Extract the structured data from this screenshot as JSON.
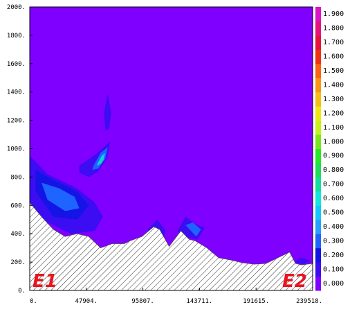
{
  "chart_data": {
    "type": "heatmap",
    "title": "",
    "xlabel": "",
    "ylabel": "",
    "xlim": [
      0,
      239518
    ],
    "ylim": [
      0,
      2000
    ],
    "x_ticks": [
      "0.",
      "47904.",
      "95807.",
      "143711.",
      "191615.",
      "239518."
    ],
    "y_ticks": [
      "0.",
      "200.",
      "400.",
      "600.",
      "800.",
      "1000.",
      "1200.",
      "1400.",
      "1600.",
      "1800.",
      "2000."
    ],
    "background_level": "0.000",
    "colorbar": {
      "levels": [
        "0.000",
        "0.100",
        "0.200",
        "0.300",
        "0.400",
        "0.500",
        "0.600",
        "0.700",
        "0.800",
        "0.900",
        "1.000",
        "1.100",
        "1.200",
        "1.300",
        "1.400",
        "1.500",
        "1.600",
        "1.700",
        "1.800",
        "1.900"
      ],
      "colors": [
        "#7f00ff",
        "#3c0cf2",
        "#1414e6",
        "#1e64ff",
        "#28a0ff",
        "#14c8ff",
        "#14e6dc",
        "#14dca0",
        "#1edc5a",
        "#28e628",
        "#7ae61e",
        "#c8f01e",
        "#f0e614",
        "#f5be14",
        "#fa9614",
        "#fa6414",
        "#f03214",
        "#e6143c",
        "#e6147a",
        "#dc14c8"
      ]
    },
    "terrain": {
      "x": [
        0,
        10000,
        20000,
        30000,
        40000,
        50000,
        60000,
        70000,
        80000,
        85000,
        95000,
        105000,
        110000,
        118000,
        128000,
        135000,
        140000,
        150000,
        160000,
        170000,
        180000,
        190000,
        200000,
        210000,
        220000,
        225000,
        230000,
        239518
      ],
      "y": [
        620,
        520,
        430,
        380,
        400,
        380,
        300,
        330,
        330,
        350,
        380,
        450,
        430,
        310,
        420,
        360,
        350,
        300,
        230,
        215,
        195,
        185,
        190,
        230,
        270,
        190,
        180,
        190
      ]
    },
    "contour_regions": [
      {
        "level": "0.100",
        "x": [
          0,
          15000,
          40000,
          55000,
          62000,
          55000,
          35000,
          15000,
          0
        ],
        "y": [
          950,
          820,
          720,
          620,
          520,
          420,
          400,
          480,
          560
        ]
      },
      {
        "level": "0.200",
        "x": [
          5000,
          20000,
          40000,
          50000,
          40000,
          20000,
          5000
        ],
        "y": [
          850,
          780,
          700,
          600,
          500,
          520,
          700
        ]
      },
      {
        "level": "0.300",
        "x": [
          10000,
          25000,
          38000,
          42000,
          30000,
          15000
        ],
        "y": [
          760,
          720,
          660,
          580,
          560,
          640
        ]
      },
      {
        "level": "0.100",
        "x": [
          42000,
          56000,
          68000,
          66000,
          58000,
          50000,
          42000
        ],
        "y": [
          880,
          960,
          1050,
          940,
          840,
          800,
          830
        ]
      },
      {
        "level": "0.300",
        "x": [
          54000,
          60000,
          66000,
          64000,
          58000,
          53000
        ],
        "y": [
          880,
          970,
          1010,
          930,
          860,
          850
        ]
      },
      {
        "level": "0.500",
        "x": [
          57000,
          61000,
          64000,
          62000,
          58000
        ],
        "y": [
          890,
          950,
          970,
          920,
          880
        ]
      },
      {
        "level": "0.700",
        "x": [
          59000,
          62000,
          63000,
          60000
        ],
        "y": [
          900,
          940,
          930,
          890
        ]
      },
      {
        "level": "0.100",
        "x": [
          63000,
          66000,
          69000,
          67000,
          64000
        ],
        "y": [
          1260,
          1390,
          1250,
          1140,
          1130
        ]
      },
      {
        "level": "0.100",
        "x": [
          100000,
          108000,
          115000,
          112000,
          104000
        ],
        "y": [
          430,
          500,
          420,
          340,
          350
        ]
      },
      {
        "level": "0.100",
        "x": [
          125000,
          132000,
          140000,
          148000,
          142000,
          130000
        ],
        "y": [
          420,
          520,
          470,
          440,
          360,
          380
        ]
      },
      {
        "level": "0.300",
        "x": [
          132000,
          138000,
          145000,
          141000
        ],
        "y": [
          460,
          480,
          430,
          380
        ]
      },
      {
        "level": "0.100",
        "x": [
          223000,
          230000,
          238000,
          232000
        ],
        "y": [
          200,
          230,
          210,
          185
        ]
      }
    ]
  },
  "annotations": {
    "start_label": "E1",
    "end_label": "E2"
  }
}
